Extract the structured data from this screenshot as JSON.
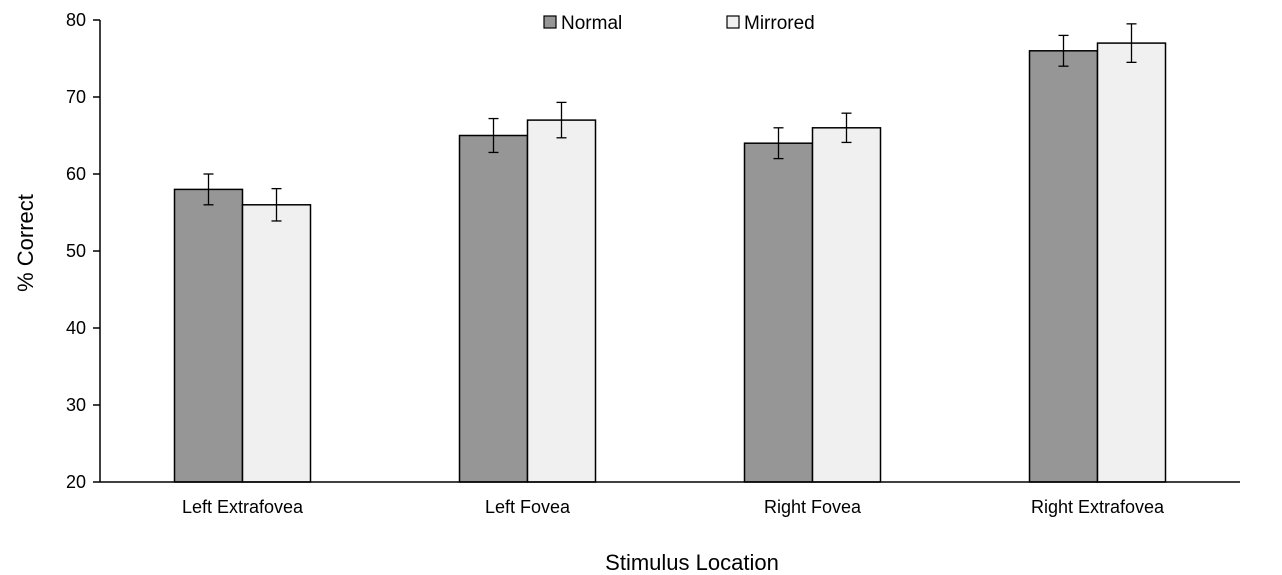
{
  "chart_data": {
    "type": "bar",
    "title": "",
    "xlabel": "Stimulus Location",
    "ylabel": "% Correct",
    "categories": [
      "Left Extrafovea",
      "Left Fovea",
      "Right Fovea",
      "Right Extrafovea"
    ],
    "ylim": [
      20,
      80
    ],
    "yticks": [
      "20",
      "30",
      "40",
      "50",
      "60",
      "70",
      "80"
    ],
    "grid": false,
    "legend_position": "top-center",
    "series": [
      {
        "name": "Normal",
        "color": "#969696",
        "values": [
          58,
          65,
          64,
          76
        ],
        "error": [
          2.0,
          2.2,
          2.0,
          2.0
        ]
      },
      {
        "name": "Mirrored",
        "color": "#f0f0f0",
        "values": [
          56,
          67,
          66,
          77
        ],
        "error": [
          2.1,
          2.3,
          1.9,
          2.5
        ]
      }
    ]
  }
}
